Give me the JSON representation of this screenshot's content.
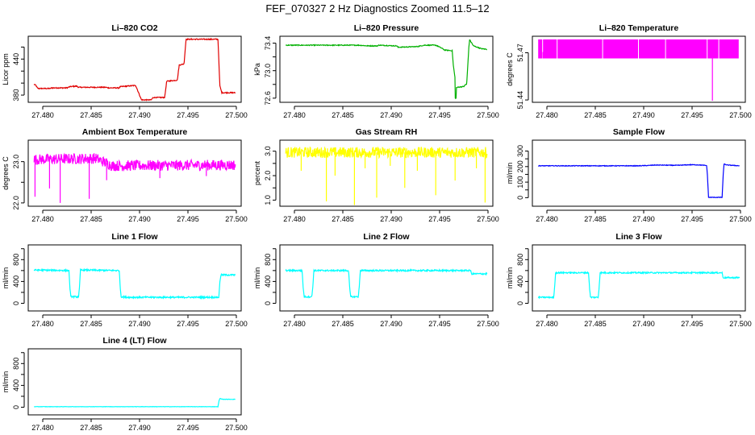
{
  "title": "FEF_070327  2 Hz Diagnostics Zoomed 11.5–12",
  "chart_data": [
    {
      "type": "line",
      "title": "Li–820 CO2",
      "ylabel": "Licor ppm",
      "color": "#e00000",
      "xlim": [
        27.4785,
        27.5005
      ],
      "ylim": [
        368,
        478
      ],
      "xticks": [
        27.48,
        27.485,
        27.49,
        27.495,
        27.5
      ],
      "xticklabels": [
        "27.480",
        "27.485",
        "27.490",
        "27.495",
        "27.500"
      ],
      "yticks": [
        380,
        400,
        420,
        440,
        460
      ],
      "yticklabels": [
        "380",
        "",
        "",
        "440",
        ""
      ],
      "noise": 0.8,
      "spikes": [],
      "x": [
        27.4791,
        27.4793,
        27.4794,
        27.4795,
        27.4808,
        27.4809,
        27.4825,
        27.4828,
        27.4835,
        27.4837,
        27.4865,
        27.4868,
        27.4879,
        27.488,
        27.4895,
        27.4896,
        27.4902,
        27.4904,
        27.4912,
        27.4914,
        27.4926,
        27.4928,
        27.4939,
        27.4941,
        27.4946,
        27.4948,
        27.4981,
        27.4983,
        27.4985,
        27.4986,
        27.4993,
        27.4999
      ],
      "y": [
        398,
        396,
        393,
        391,
        391,
        392,
        392,
        394,
        395,
        393,
        393,
        392,
        392,
        394,
        396,
        396,
        372,
        372,
        372,
        376,
        376,
        403,
        405,
        430,
        432,
        473,
        473,
        395,
        384,
        384,
        384,
        384
      ]
    },
    {
      "type": "line",
      "title": "Li–820 Pressure",
      "ylabel": "kPa",
      "color": "#00b000",
      "xlim": [
        27.4785,
        27.5005
      ],
      "ylim": [
        72.54,
        73.5
      ],
      "xticks": [
        27.48,
        27.485,
        27.49,
        27.495,
        27.5
      ],
      "xticklabels": [
        "27.480",
        "27.485",
        "27.490",
        "27.495",
        "27.500"
      ],
      "yticks": [
        72.6,
        72.8,
        73.0,
        73.2,
        73.4
      ],
      "yticklabels": [
        "72.6",
        "",
        "73.0",
        "",
        "73.4"
      ],
      "noise": 0.006,
      "spikes": [],
      "x": [
        27.4791,
        27.4866,
        27.4876,
        27.4886,
        27.4887,
        27.4906,
        27.4907,
        27.4927,
        27.4934,
        27.4946,
        27.4949,
        27.4953,
        27.4955,
        27.4963,
        27.4964,
        27.4966,
        27.4966,
        27.4967,
        27.4967,
        27.4969,
        27.4975,
        27.4977,
        27.4978,
        27.498,
        27.4981,
        27.4985,
        27.4993,
        27.4999
      ],
      "y": [
        73.37,
        73.37,
        73.36,
        73.36,
        73.37,
        73.36,
        73.34,
        73.35,
        73.37,
        73.37,
        73.35,
        73.32,
        73.3,
        73.29,
        73.1,
        72.88,
        72.6,
        72.6,
        72.75,
        72.76,
        72.77,
        72.8,
        72.8,
        73.3,
        73.45,
        73.36,
        73.32,
        73.31
      ]
    },
    {
      "type": "line",
      "title": "Li–820 Temperature",
      "ylabel": "degrees C",
      "color": "#ff00ff",
      "xlim": [
        27.4785,
        27.5005
      ],
      "ylim": [
        51.4385,
        51.4805
      ],
      "xticks": [
        27.48,
        27.485,
        27.49,
        27.495,
        27.5
      ],
      "xticklabels": [
        "27.480",
        "27.485",
        "27.490",
        "27.495",
        "27.500"
      ],
      "yticks": [
        51.44,
        51.47
      ],
      "yticklabels": [
        "51.44",
        "51.47"
      ],
      "band": [
        51.4664,
        51.4785
      ],
      "bandGaps": [
        27.4796,
        27.4811,
        27.4858,
        27.4895,
        27.4923,
        27.4966,
        27.4978
      ],
      "spikes": [
        [
          27.4796,
          51.4705
        ],
        [
          27.4971,
          51.4395
        ]
      ]
    },
    {
      "type": "line",
      "title": "Ambient Box Temperature",
      "ylabel": "degrees C",
      "color": "#ff00ff",
      "xlim": [
        27.4785,
        27.5005
      ],
      "ylim": [
        21.92,
        23.52
      ],
      "xticks": [
        27.48,
        27.485,
        27.49,
        27.495,
        27.5
      ],
      "xticklabels": [
        "27.480",
        "27.485",
        "27.490",
        "27.495",
        "27.500"
      ],
      "yticks": [
        22.0,
        22.5,
        23.0
      ],
      "yticklabels": [
        "22.0",
        "",
        "23.0"
      ],
      "noise": 0.13,
      "x": [
        27.4791,
        27.4855,
        27.4872,
        27.4999
      ],
      "y": [
        23.05,
        23.08,
        22.9,
        22.92
      ],
      "spikes": [
        [
          27.4792,
          22.15
        ],
        [
          27.4807,
          22.35
        ],
        [
          27.4818,
          22.0
        ],
        [
          27.4848,
          22.1
        ],
        [
          27.4866,
          22.55
        ],
        [
          27.4921,
          22.6
        ],
        [
          27.4969,
          22.65
        ]
      ]
    },
    {
      "type": "line",
      "title": "Gas Stream RH",
      "ylabel": "percent",
      "color": "#ffff00",
      "xlim": [
        27.4785,
        27.5005
      ],
      "ylim": [
        0.75,
        3.45
      ],
      "xticks": [
        27.48,
        27.485,
        27.49,
        27.495,
        27.5
      ],
      "xticklabels": [
        "27.480",
        "27.485",
        "27.490",
        "27.495",
        "27.500"
      ],
      "yticks": [
        1.0,
        1.5,
        2.0,
        2.5,
        3.0
      ],
      "yticklabels": [
        "1.0",
        "",
        "2.0",
        "",
        "3.0"
      ],
      "noise": 0.22,
      "x": [
        27.4791,
        27.4999
      ],
      "y": [
        2.95,
        2.95
      ],
      "spikes": [
        [
          27.4807,
          2.2
        ],
        [
          27.4833,
          0.95
        ],
        [
          27.4842,
          2.0
        ],
        [
          27.4862,
          0.8
        ],
        [
          27.4873,
          2.3
        ],
        [
          27.4885,
          1.1
        ],
        [
          27.4899,
          2.4
        ],
        [
          27.4914,
          1.5
        ],
        [
          27.4927,
          2.2
        ],
        [
          27.4946,
          1.2
        ],
        [
          27.4966,
          1.8
        ],
        [
          27.4988,
          2.3
        ],
        [
          27.4997,
          0.9
        ]
      ]
    },
    {
      "type": "line",
      "title": "Sample Flow",
      "ylabel": "ml/min",
      "color": "#0000ff",
      "xlim": [
        27.4785,
        27.5005
      ],
      "ylim": [
        -55,
        370
      ],
      "xticks": [
        27.48,
        27.485,
        27.49,
        27.495,
        27.5
      ],
      "xticklabels": [
        "27.480",
        "27.485",
        "27.490",
        "27.495",
        "27.500"
      ],
      "yticks": [
        0,
        50,
        100,
        150,
        200,
        250,
        300
      ],
      "yticklabels": [
        "0",
        "",
        "100",
        "",
        "200",
        "",
        "300"
      ],
      "noise": 2,
      "spikes": [],
      "x": [
        27.4791,
        27.4895,
        27.4905,
        27.4912,
        27.4935,
        27.4948,
        27.4956,
        27.4965,
        27.4966,
        27.4967,
        27.4981,
        27.4982,
        27.4983,
        27.4986,
        27.4999
      ],
      "y": [
        205,
        205,
        207,
        210,
        208,
        212,
        211,
        207,
        130,
        2,
        2,
        130,
        217,
        210,
        205
      ]
    },
    {
      "type": "line",
      "title": "Line 1 Flow",
      "ylabel": "ml/min",
      "color": "#00ffff",
      "xlim": [
        27.4785,
        27.5005
      ],
      "ylim": [
        -140,
        1070
      ],
      "xticks": [
        27.48,
        27.485,
        27.49,
        27.495,
        27.5
      ],
      "xticklabels": [
        "27.480",
        "27.485",
        "27.490",
        "27.495",
        "27.500"
      ],
      "yticks": [
        0,
        200,
        400,
        600,
        800,
        1000
      ],
      "yticklabels": [
        "0",
        "",
        "400",
        "",
        "800",
        ""
      ],
      "noise": 14,
      "spikes": [],
      "x": [
        27.4791,
        27.4827,
        27.4828,
        27.4829,
        27.4837,
        27.4838,
        27.4839,
        27.4879,
        27.488,
        27.4881,
        27.4888,
        27.4982,
        27.4983,
        27.4984,
        27.4999
      ],
      "y": [
        610,
        600,
        300,
        120,
        120,
        300,
        610,
        600,
        300,
        120,
        110,
        110,
        400,
        520,
        520
      ]
    },
    {
      "type": "line",
      "title": "Line 2 Flow",
      "ylabel": "ml/min",
      "color": "#00ffff",
      "xlim": [
        27.4785,
        27.5005
      ],
      "ylim": [
        -140,
        1070
      ],
      "xticks": [
        27.48,
        27.485,
        27.49,
        27.495,
        27.5
      ],
      "xticklabels": [
        "27.480",
        "27.485",
        "27.490",
        "27.495",
        "27.500"
      ],
      "yticks": [
        0,
        200,
        400,
        600,
        800,
        1000
      ],
      "yticklabels": [
        "0",
        "",
        "400",
        "",
        "800",
        ""
      ],
      "noise": 14,
      "spikes": [],
      "x": [
        27.4791,
        27.4808,
        27.4809,
        27.481,
        27.4818,
        27.4819,
        27.482,
        27.4856,
        27.4857,
        27.4858,
        27.4866,
        27.4867,
        27.4868,
        27.4982,
        27.4983,
        27.4999
      ],
      "y": [
        600,
        600,
        300,
        120,
        120,
        300,
        600,
        600,
        300,
        120,
        120,
        300,
        600,
        600,
        540,
        540
      ]
    },
    {
      "type": "line",
      "title": "Line 3 Flow",
      "ylabel": "ml/min",
      "color": "#00ffff",
      "xlim": [
        27.4785,
        27.5005
      ],
      "ylim": [
        -140,
        1070
      ],
      "xticks": [
        27.48,
        27.485,
        27.49,
        27.495,
        27.5
      ],
      "xticklabels": [
        "27.480",
        "27.485",
        "27.490",
        "27.495",
        "27.500"
      ],
      "yticks": [
        0,
        200,
        400,
        600,
        800,
        1000
      ],
      "yticklabels": [
        "0",
        "",
        "400",
        "",
        "800",
        ""
      ],
      "noise": 12,
      "spikes": [],
      "x": [
        27.4791,
        27.4807,
        27.4808,
        27.4809,
        27.4843,
        27.4844,
        27.4845,
        27.4853,
        27.4854,
        27.4855,
        27.4981,
        27.4982,
        27.4999
      ],
      "y": [
        110,
        110,
        300,
        560,
        560,
        300,
        110,
        110,
        300,
        560,
        560,
        470,
        470
      ]
    },
    {
      "type": "line",
      "title": "Line 4 (LT) Flow",
      "ylabel": "ml/min",
      "color": "#00ffff",
      "xlim": [
        27.4785,
        27.5005
      ],
      "ylim": [
        -140,
        1070
      ],
      "xticks": [
        27.48,
        27.485,
        27.49,
        27.495,
        27.5
      ],
      "xticklabels": [
        "27.480",
        "27.485",
        "27.490",
        "27.495",
        "27.500"
      ],
      "yticks": [
        0,
        200,
        400,
        600,
        800,
        1000
      ],
      "yticklabels": [
        "0",
        "",
        "400",
        "",
        "800",
        ""
      ],
      "noise": 3,
      "spikes": [],
      "x": [
        27.4791,
        27.4981,
        27.4982,
        27.4983,
        27.4986,
        27.4999
      ],
      "y": [
        10,
        10,
        110,
        160,
        145,
        145
      ]
    }
  ]
}
